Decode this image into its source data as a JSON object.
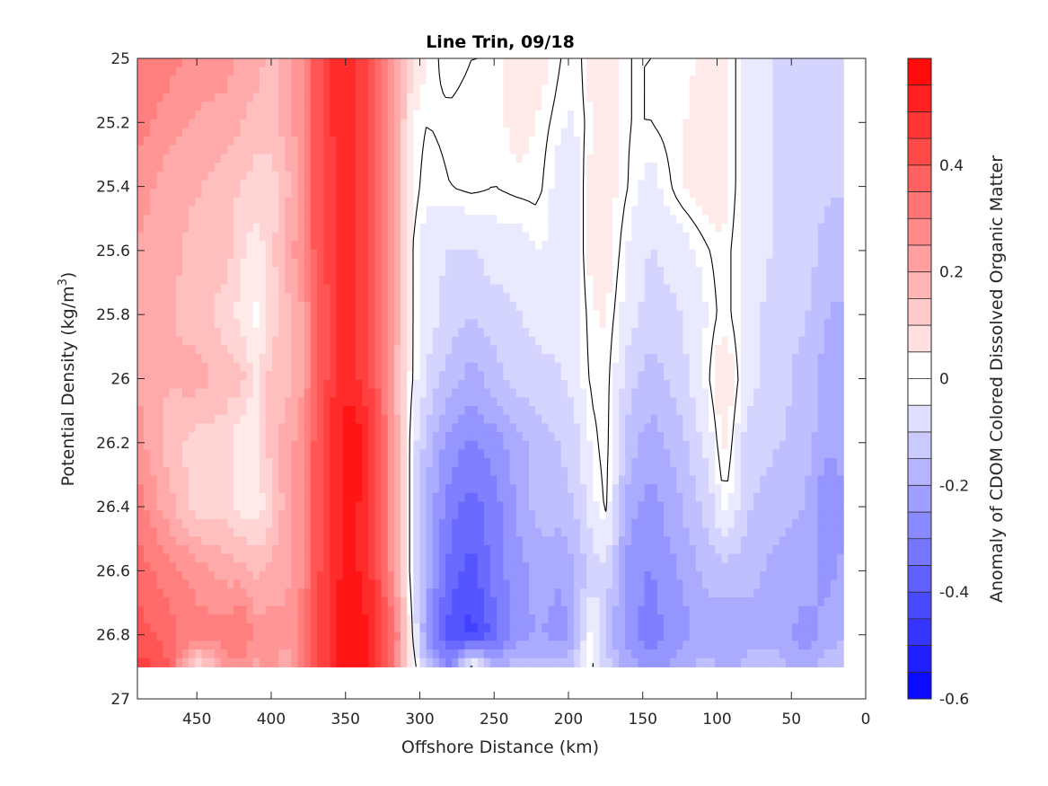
{
  "chart_data": {
    "type": "heatmap",
    "title": "Line Trin, 09/18",
    "xlabel": "Offshore Distance (km)",
    "ylabel_main": "Potential Density (kg/m",
    "ylabel_sup": "3",
    "ylabel_end": ")",
    "colorbar_label": "Anomaly of CDOM Colored Dissolved Organic Matter",
    "xlim": [
      490,
      0
    ],
    "ylim": [
      25,
      27
    ],
    "x_reversed": true,
    "y_reversed": true,
    "x_ticks": [
      450,
      400,
      350,
      300,
      250,
      200,
      150,
      100,
      50,
      0
    ],
    "x_tick_labels": [
      "450",
      "400",
      "350",
      "300",
      "250",
      "200",
      "150",
      "100",
      "50",
      "0"
    ],
    "y_ticks": [
      25,
      25.2,
      25.4,
      25.6,
      25.8,
      26,
      26.2,
      26.4,
      26.6,
      26.8,
      27
    ],
    "y_tick_labels": [
      "25",
      "25.2",
      "25.4",
      "25.6",
      "25.8",
      "26",
      "26.2",
      "26.4",
      "26.6",
      "26.8",
      "27"
    ],
    "colorbar_range": [
      -0.6,
      0.6
    ],
    "colorbar_step": 0.05,
    "colorbar_ticks": [
      0.4,
      0.2,
      0,
      -0.2,
      -0.4,
      -0.6
    ],
    "colorbar_tick_labels": [
      "0.4",
      "0.2",
      "0",
      "-0.2",
      "-0.4",
      "-0.6"
    ],
    "colormap": {
      "negative": "#0000ff",
      "zero": "#ffffff",
      "positive": "#ff0000"
    },
    "data_extent_x": [
      490,
      15
    ],
    "data_bottom_y": 26.9,
    "zero_contour_color": "#000000",
    "columns": [
      {
        "x": 490,
        "v": [
          0.3,
          0.3,
          0.25,
          0.22,
          0.2,
          0.22,
          0.25,
          0.3,
          0.35,
          0.4,
          0.45
        ]
      },
      {
        "x": 470,
        "v": [
          0.3,
          0.25,
          0.2,
          0.2,
          0.18,
          0.18,
          0.15,
          0.2,
          0.3,
          0.35,
          0.4
        ]
      },
      {
        "x": 450,
        "v": [
          0.25,
          0.22,
          0.18,
          0.15,
          0.15,
          0.2,
          0.1,
          0.1,
          0.25,
          0.3,
          0.05
        ]
      },
      {
        "x": 430,
        "v": [
          0.25,
          0.2,
          0.15,
          0.15,
          0.1,
          0.15,
          0.1,
          0.1,
          0.2,
          0.3,
          0.25
        ]
      },
      {
        "x": 420,
        "v": [
          0.2,
          0.18,
          0.12,
          0.08,
          0.05,
          0.15,
          0.02,
          0.05,
          0.2,
          0.35,
          0.25
        ]
      },
      {
        "x": 410,
        "v": [
          0.2,
          0.15,
          0.1,
          0.05,
          0.0,
          0.05,
          0.05,
          0.05,
          0.15,
          0.25,
          0.2
        ]
      },
      {
        "x": 400,
        "v": [
          0.15,
          0.15,
          0.1,
          0.1,
          0.1,
          0.15,
          0.15,
          0.1,
          0.2,
          0.25,
          0.3
        ]
      },
      {
        "x": 390,
        "v": [
          0.2,
          0.2,
          0.15,
          0.2,
          0.15,
          0.15,
          0.2,
          0.2,
          0.2,
          0.25,
          0.15
        ]
      },
      {
        "x": 380,
        "v": [
          0.25,
          0.25,
          0.25,
          0.25,
          0.2,
          0.2,
          0.25,
          0.25,
          0.25,
          0.3,
          0.3
        ]
      },
      {
        "x": 370,
        "v": [
          0.4,
          0.4,
          0.4,
          0.4,
          0.35,
          0.35,
          0.4,
          0.4,
          0.4,
          0.4,
          0.4
        ]
      },
      {
        "x": 355,
        "v": [
          0.5,
          0.5,
          0.48,
          0.48,
          0.48,
          0.5,
          0.52,
          0.5,
          0.52,
          0.55,
          0.55
        ]
      },
      {
        "x": 345,
        "v": [
          0.48,
          0.48,
          0.48,
          0.48,
          0.48,
          0.5,
          0.58,
          0.55,
          0.55,
          0.58,
          0.58
        ]
      },
      {
        "x": 330,
        "v": [
          0.4,
          0.4,
          0.4,
          0.4,
          0.4,
          0.4,
          0.45,
          0.45,
          0.45,
          0.5,
          0.5
        ]
      },
      {
        "x": 315,
        "v": [
          0.2,
          0.2,
          0.2,
          0.2,
          0.2,
          0.15,
          0.2,
          0.2,
          0.2,
          0.3,
          0.25
        ]
      },
      {
        "x": 305,
        "v": [
          0.08,
          0.02,
          0.02,
          0.0,
          0.0,
          0.0,
          -0.05,
          -0.05,
          -0.05,
          0.0,
          0.05
        ]
      },
      {
        "x": 295,
        "v": [
          0.02,
          0.0,
          -0.02,
          -0.05,
          -0.05,
          -0.08,
          -0.15,
          -0.2,
          -0.2,
          -0.25,
          -0.15
        ]
      },
      {
        "x": 280,
        "v": [
          -0.02,
          0.01,
          0.0,
          -0.08,
          -0.1,
          -0.15,
          -0.25,
          -0.3,
          -0.35,
          -0.4,
          -0.3
        ]
      },
      {
        "x": 265,
        "v": [
          0.0,
          0.02,
          0.01,
          -0.08,
          -0.12,
          -0.2,
          -0.28,
          -0.35,
          -0.4,
          -0.45,
          0.02
        ]
      },
      {
        "x": 250,
        "v": [
          0.0,
          0.0,
          0.0,
          -0.05,
          -0.1,
          -0.15,
          -0.25,
          -0.3,
          -0.3,
          -0.35,
          -0.2
        ]
      },
      {
        "x": 235,
        "v": [
          0.05,
          0.05,
          0.01,
          -0.05,
          -0.08,
          -0.1,
          -0.2,
          -0.22,
          -0.25,
          -0.25,
          -0.15
        ]
      },
      {
        "x": 220,
        "v": [
          0.05,
          0.02,
          0.01,
          -0.02,
          -0.05,
          -0.1,
          -0.15,
          -0.15,
          -0.2,
          -0.22,
          -0.15
        ]
      },
      {
        "x": 205,
        "v": [
          0.0,
          -0.02,
          -0.05,
          -0.05,
          -0.05,
          -0.08,
          -0.12,
          -0.15,
          -0.22,
          -0.25,
          -0.15
        ]
      },
      {
        "x": 195,
        "v": [
          -0.03,
          -0.03,
          -0.05,
          -0.05,
          -0.05,
          -0.05,
          -0.1,
          -0.12,
          -0.18,
          -0.2,
          -0.1
        ]
      },
      {
        "x": 185,
        "v": [
          0.05,
          0.02,
          0.05,
          0.05,
          0.02,
          0.01,
          -0.02,
          -0.05,
          -0.1,
          0.02,
          0.02
        ]
      },
      {
        "x": 175,
        "v": [
          0.08,
          0.05,
          0.05,
          0.05,
          0.03,
          0.02,
          0.02,
          0.01,
          -0.08,
          -0.15,
          -0.1
        ]
      },
      {
        "x": 160,
        "v": [
          0.0,
          0.0,
          0.0,
          -0.03,
          -0.05,
          -0.1,
          -0.15,
          -0.2,
          -0.25,
          -0.25,
          -0.2
        ]
      },
      {
        "x": 145,
        "v": [
          0.0,
          0.0,
          -0.05,
          -0.08,
          -0.1,
          -0.15,
          -0.2,
          -0.25,
          -0.28,
          -0.3,
          -0.25
        ]
      },
      {
        "x": 125,
        "v": [
          0.0,
          0.02,
          0.02,
          -0.05,
          -0.08,
          -0.1,
          -0.15,
          -0.18,
          -0.22,
          -0.25,
          -0.2
        ]
      },
      {
        "x": 105,
        "v": [
          0.05,
          0.05,
          0.05,
          0.0,
          -0.02,
          0.0,
          -0.05,
          -0.1,
          -0.15,
          -0.2,
          -0.15
        ]
      },
      {
        "x": 95,
        "v": [
          0.05,
          0.05,
          0.05,
          0.02,
          0.02,
          0.08,
          0.05,
          0.0,
          -0.15,
          -0.22,
          -0.2
        ]
      },
      {
        "x": 80,
        "v": [
          -0.05,
          -0.05,
          -0.05,
          -0.05,
          -0.05,
          -0.05,
          -0.1,
          -0.12,
          -0.15,
          -0.2,
          -0.15
        ]
      },
      {
        "x": 60,
        "v": [
          -0.08,
          -0.08,
          -0.08,
          -0.08,
          -0.1,
          -0.1,
          -0.12,
          -0.15,
          -0.2,
          -0.2,
          -0.15
        ]
      },
      {
        "x": 40,
        "v": [
          -0.1,
          -0.1,
          -0.1,
          -0.1,
          -0.12,
          -0.15,
          -0.15,
          -0.18,
          -0.2,
          -0.25,
          -0.2
        ]
      },
      {
        "x": 25,
        "v": [
          -0.12,
          -0.12,
          -0.12,
          -0.15,
          -0.18,
          -0.2,
          -0.22,
          -0.28,
          -0.25,
          -0.2,
          -0.15
        ]
      },
      {
        "x": 15,
        "v": [
          -0.1,
          -0.12,
          -0.12,
          -0.15,
          -0.18,
          -0.18,
          -0.18,
          -0.25,
          -0.2,
          -0.18,
          -0.15
        ]
      }
    ],
    "column_y": [
      25.0,
      25.2,
      25.4,
      25.6,
      25.8,
      26.0,
      26.2,
      26.4,
      26.6,
      26.8,
      26.9
    ]
  }
}
